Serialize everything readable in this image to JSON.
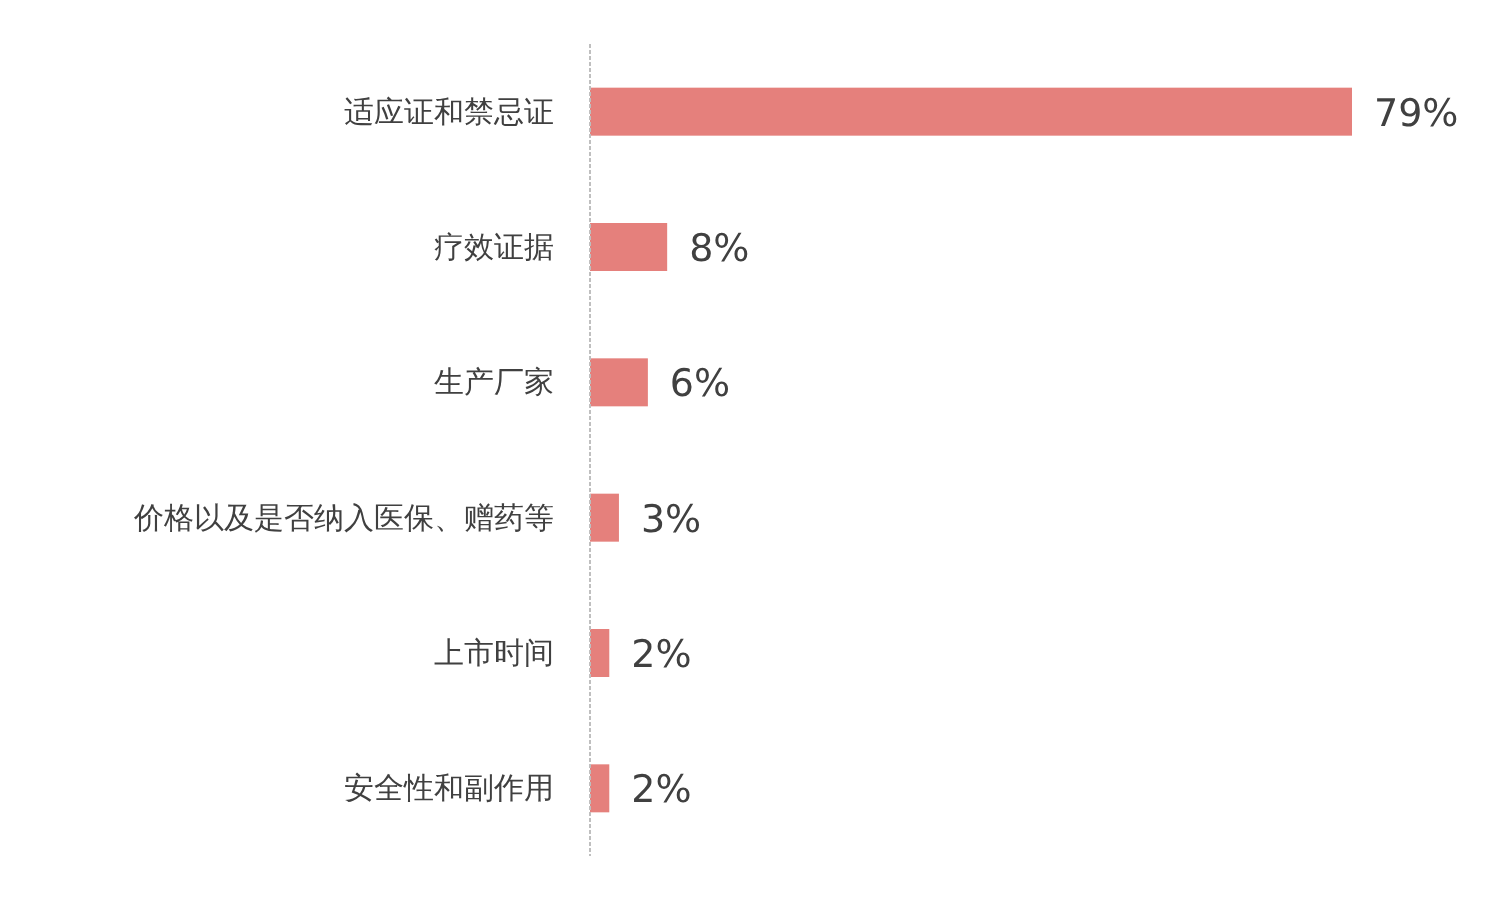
{
  "chart_data": {
    "type": "bar",
    "orientation": "horizontal",
    "categories": [
      "适应证和禁忌证",
      "疗效证据",
      "生产厂家",
      "价格以及是否纳入医保、赠药等",
      "上市时间",
      "安全性和副作用"
    ],
    "values": [
      79,
      8,
      6,
      3,
      2,
      2
    ],
    "value_labels": [
      "79%",
      "8%",
      "6%",
      "3%",
      "2%",
      "2%"
    ],
    "color": "#e5807c"
  }
}
